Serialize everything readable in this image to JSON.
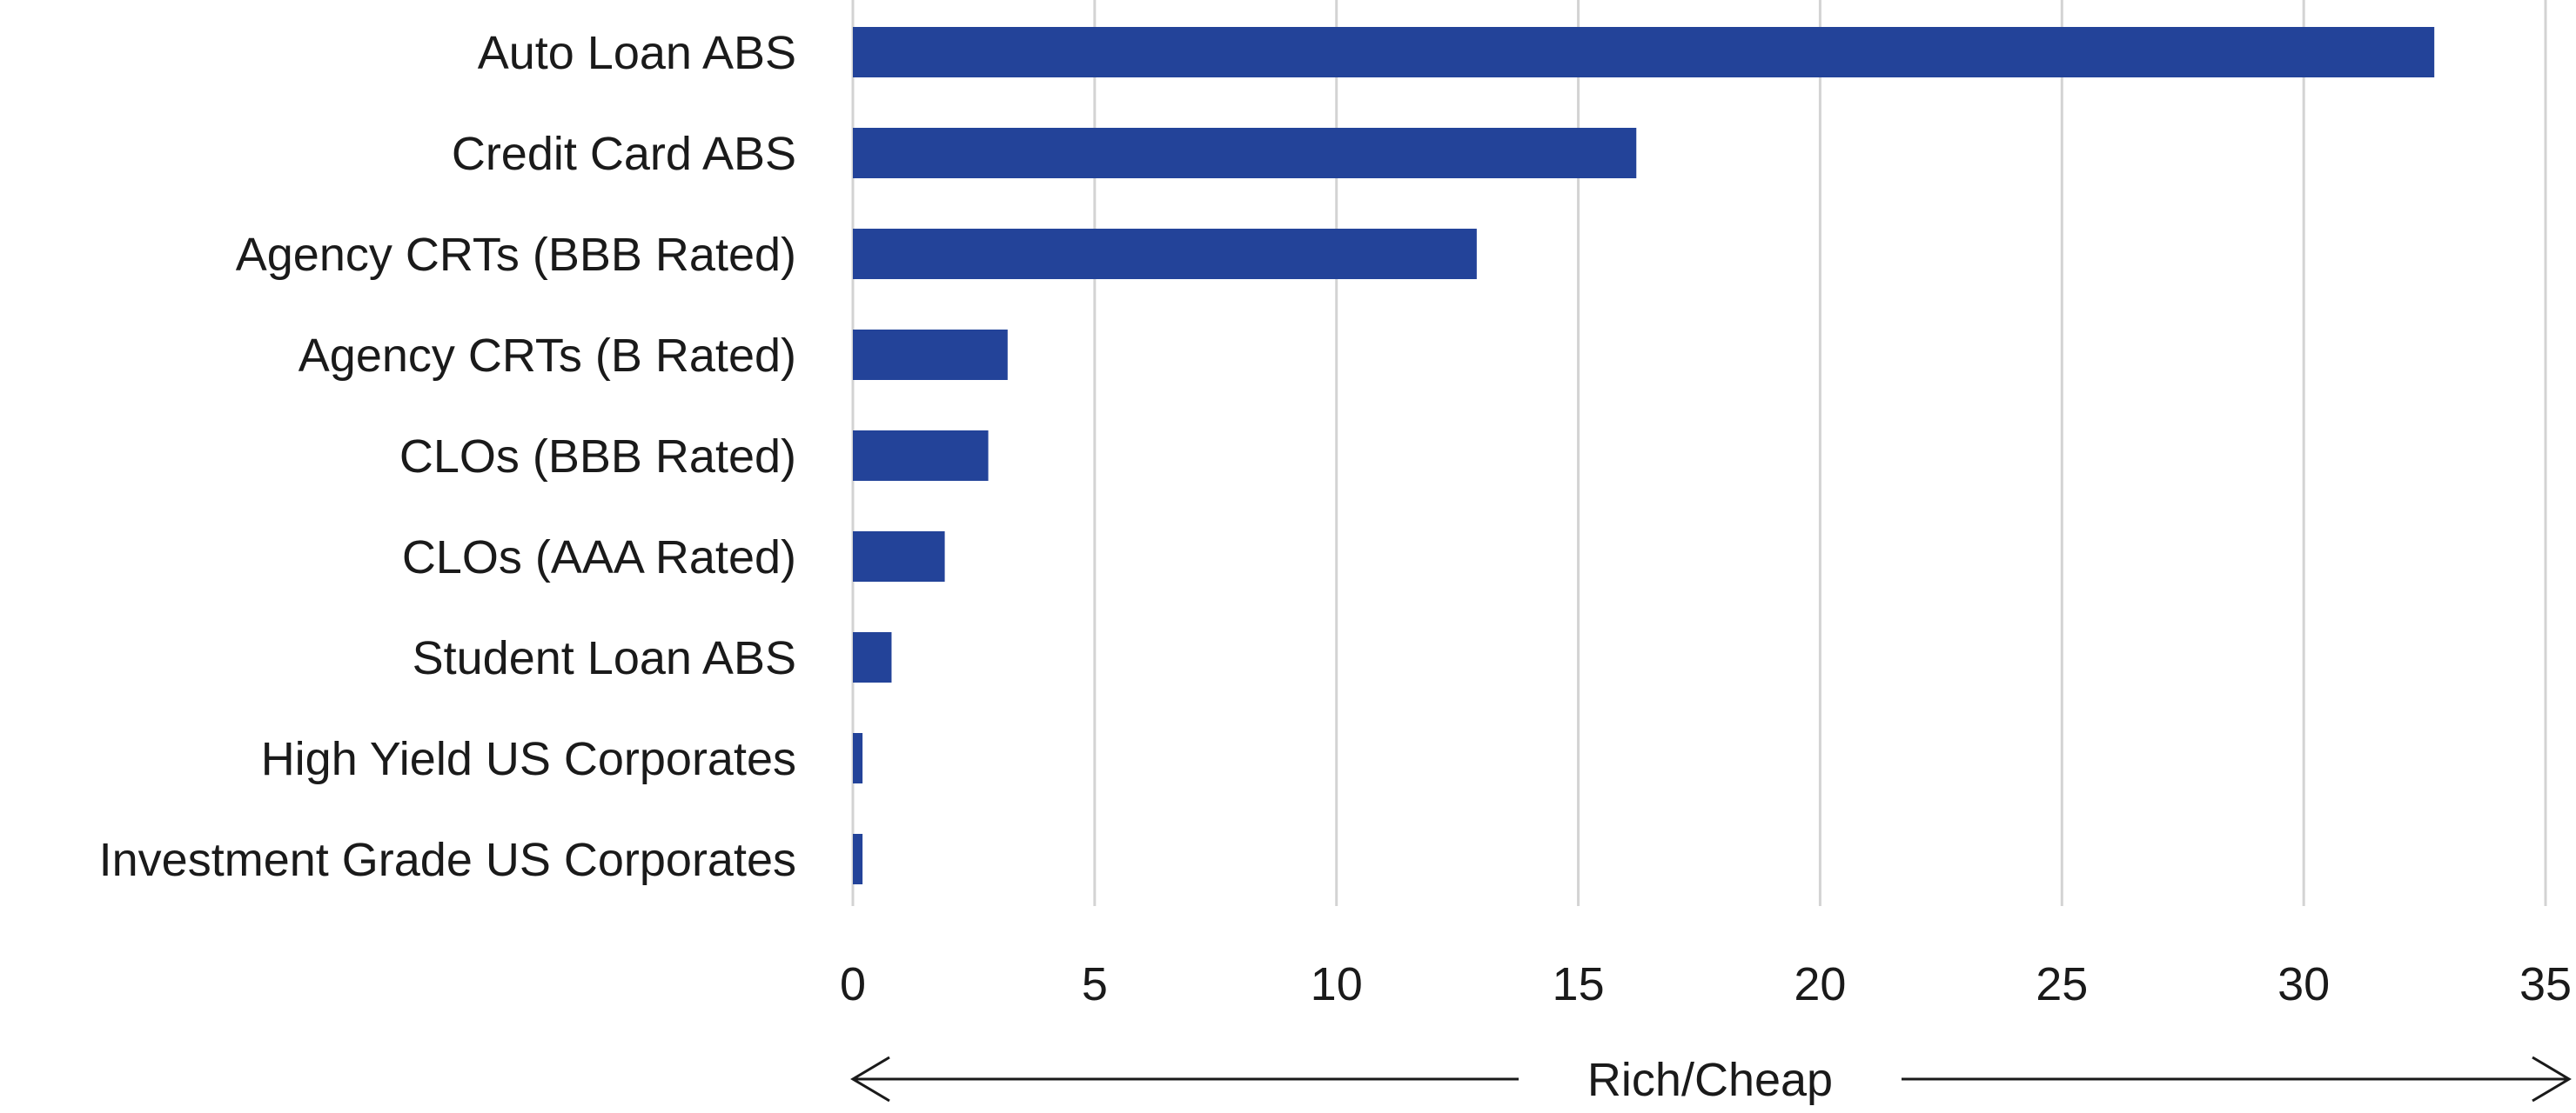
{
  "chart_data": {
    "type": "bar",
    "orientation": "horizontal",
    "categories": [
      "Auto Loan ABS",
      "Credit Card ABS",
      "Agency CRTs (BBB Rated)",
      "Agency CRTs (B Rated)",
      "CLOs (BBB Rated)",
      "CLOs (AAA Rated)",
      "Student Loan ABS",
      "High Yield US Corporates",
      "Investment Grade US Corporates"
    ],
    "values": [
      32.7,
      16.2,
      12.9,
      3.2,
      2.8,
      1.9,
      0.8,
      0.2,
      0.2
    ],
    "title": "",
    "xlabel": "Rich/Cheap",
    "ylabel": "",
    "xlim": [
      0,
      35
    ],
    "xticks": [
      0,
      5,
      10,
      15,
      20,
      25,
      30,
      35
    ],
    "xtick_labels": [
      "0",
      "5",
      "10",
      "15",
      "20",
      "25",
      "30",
      "35"
    ],
    "grid": "vertical",
    "legend": "none",
    "colors": {
      "bar": "#234399",
      "grid": "#d3d3d3",
      "text": "#1a1a1a"
    }
  }
}
